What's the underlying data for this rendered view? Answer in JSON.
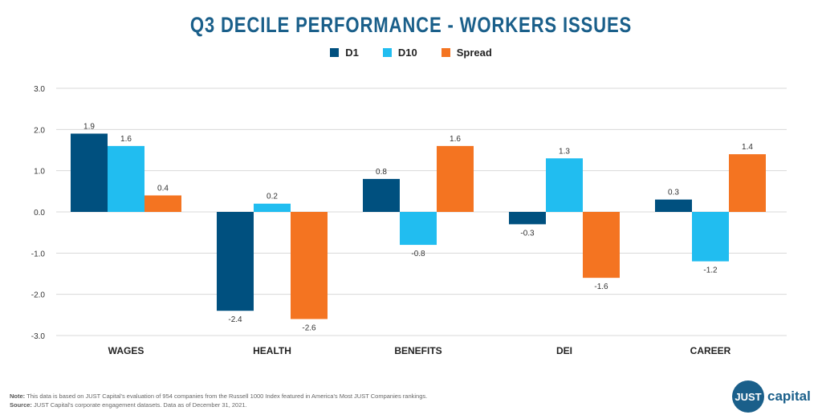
{
  "colors": {
    "d1": "#00507f",
    "d10": "#21bdf0",
    "spread": "#f47421",
    "title": "#1a5f8a"
  },
  "chart_data": {
    "type": "bar",
    "title": "Q3 DECILE PERFORMANCE - WORKERS ISSUES",
    "categories": [
      "WAGES",
      "HEALTH",
      "BENEFITS",
      "DEI",
      "CAREER"
    ],
    "series": [
      {
        "name": "D1",
        "values": [
          1.9,
          -2.4,
          0.8,
          -0.3,
          0.3
        ]
      },
      {
        "name": "D10",
        "values": [
          1.6,
          0.2,
          -0.8,
          1.3,
          -1.2
        ]
      },
      {
        "name": "Spread",
        "values": [
          0.4,
          -2.6,
          1.6,
          -1.6,
          1.4
        ]
      }
    ],
    "ylim": [
      -3.0,
      3.0
    ],
    "yticks": [
      "3.0",
      "2.0",
      "1.0",
      "0.0",
      "-1.0",
      "-2.0",
      "-3.0"
    ],
    "ytick_values": [
      3,
      2,
      1,
      0,
      -1,
      -2,
      -3
    ],
    "grid": true,
    "legend": "top-center",
    "xlabel": "",
    "ylabel": ""
  },
  "footnote": {
    "note_label": "Note:",
    "note_text": " This data is based on JUST Capital's evaluation of 954 companies from the Russell 1000 Index featured in America's Most JUST Companies rankings.",
    "source_label": "Source:",
    "source_text": " JUST Capital's corporate engagement datasets. Data as of December 31, 2021."
  },
  "logo": {
    "circle_text": "JUST",
    "text": "capital"
  }
}
